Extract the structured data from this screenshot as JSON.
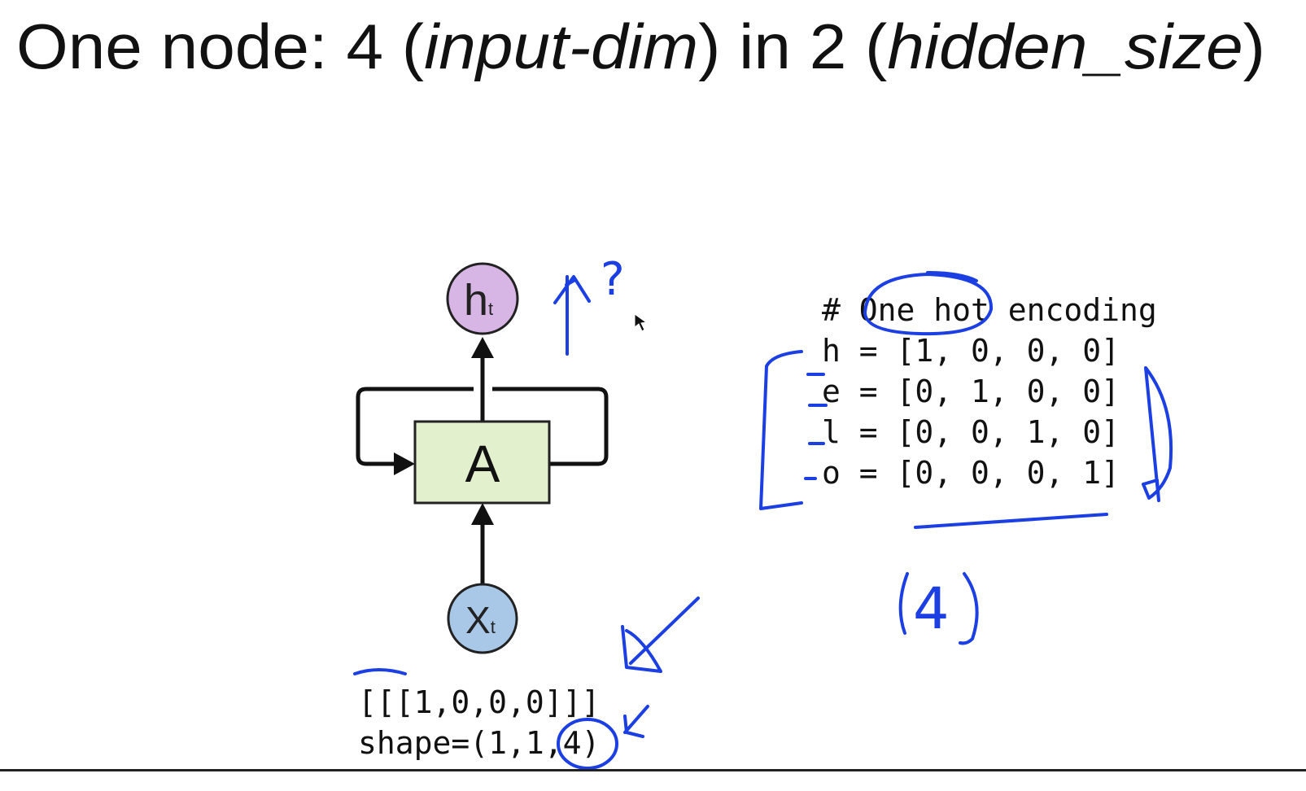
{
  "title": [
    {
      "text": "One node: 4 (",
      "italic": false
    },
    {
      "text": "input-dim",
      "italic": true
    },
    {
      "text": ") in 2 (",
      "italic": false
    },
    {
      "text": "hidden_size",
      "italic": true
    },
    {
      "text": ")",
      "italic": false
    }
  ],
  "nodes": [
    {
      "label": "h",
      "sub": "t"
    },
    {
      "label": "A"
    },
    {
      "label": "X",
      "sub": "t"
    }
  ],
  "code_right": [
    "# One hot encoding",
    "h = [1, 0, 0, 0]",
    "e = [0, 1, 0, 0]",
    "l = [0, 0, 1, 0]",
    "o = [0, 0, 0, 1]"
  ],
  "code_bottom": [
    "[[[1,0,0,0]]]",
    "shape=(1,1,4)"
  ],
  "annotations": [
    "?",
    "4"
  ]
}
